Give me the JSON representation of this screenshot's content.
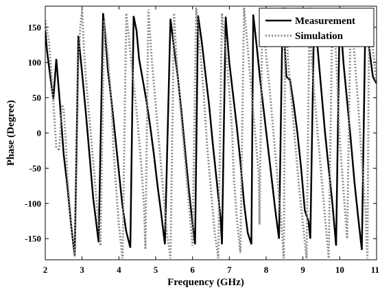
{
  "chart_data": {
    "type": "line",
    "xlabel": "Frequency (GHz)",
    "ylabel": "Phase (Degree)",
    "xlim": [
      2,
      11
    ],
    "ylim": [
      -180,
      180
    ],
    "xticks": [
      2,
      3,
      4,
      5,
      6,
      7,
      8,
      9,
      10,
      11
    ],
    "yticks": [
      150,
      100,
      50,
      0,
      -50,
      -100,
      -150
    ],
    "grid": false,
    "legend_position": "top-right",
    "series": [
      {
        "name": "Measurement",
        "color": "#000000",
        "style": "solid",
        "x": [
          2.0,
          2.05,
          2.15,
          2.22,
          2.3,
          2.4,
          2.5,
          2.6,
          2.7,
          2.8,
          2.9,
          3.0,
          3.1,
          3.2,
          3.3,
          3.45,
          3.57,
          3.62,
          3.7,
          3.8,
          3.9,
          4.0,
          4.1,
          4.2,
          4.31,
          4.4,
          4.48,
          4.55,
          4.65,
          4.75,
          4.85,
          4.95,
          5.05,
          5.15,
          5.25,
          5.4,
          5.5,
          5.6,
          5.7,
          5.8,
          5.9,
          6.0,
          6.07,
          6.15,
          6.25,
          6.35,
          6.45,
          6.55,
          6.65,
          6.76,
          6.8,
          6.9,
          7.0,
          7.1,
          7.2,
          7.3,
          7.4,
          7.5,
          7.6,
          7.65,
          7.75,
          7.85,
          7.95,
          8.05,
          8.15,
          8.25,
          8.35,
          8.45,
          8.55,
          8.65,
          8.75,
          8.85,
          8.95,
          9.05,
          9.15,
          9.2,
          9.3,
          9.4,
          9.5,
          9.6,
          9.7,
          9.8,
          9.9,
          10.0,
          10.1,
          10.2,
          10.3,
          10.4,
          10.5,
          10.6,
          10.7,
          10.8,
          10.9,
          11.0
        ],
        "y": [
          145,
          115,
          75,
          48,
          105,
          40,
          -30,
          -75,
          -130,
          -175,
          138,
          85,
          30,
          -30,
          -92,
          -155,
          170,
          145,
          90,
          45,
          -5,
          -55,
          -105,
          -140,
          -163,
          166,
          145,
          105,
          75,
          45,
          10,
          -30,
          -75,
          -115,
          -158,
          162,
          120,
          80,
          30,
          -25,
          -80,
          -128,
          -158,
          167,
          130,
          85,
          40,
          -15,
          -65,
          -120,
          -158,
          165,
          100,
          55,
          10,
          -40,
          -100,
          -142,
          -158,
          168,
          120,
          70,
          25,
          -20,
          -65,
          -110,
          -150,
          178,
          80,
          75,
          40,
          0,
          -50,
          -110,
          -125,
          -150,
          160,
          120,
          60,
          0,
          -50,
          -100,
          -160,
          175,
          100,
          45,
          -10,
          -70,
          -120,
          -166,
          172,
          120,
          80,
          70
        ]
      },
      {
        "name": "Simulation",
        "color": "#8a8a8a",
        "style": "dotted",
        "x": [
          2.0,
          2.1,
          2.2,
          2.3,
          2.38,
          2.45,
          2.5,
          2.55,
          2.6,
          2.7,
          2.8,
          2.9,
          2.95,
          3.0,
          3.05,
          3.1,
          3.2,
          3.3,
          3.4,
          3.5,
          3.6,
          3.7,
          3.8,
          3.85,
          3.9,
          4.0,
          4.1,
          4.2,
          4.3,
          4.4,
          4.5,
          4.6,
          4.68,
          4.72,
          4.8,
          4.9,
          5.0,
          5.1,
          5.2,
          5.3,
          5.4,
          5.5,
          5.55,
          5.6,
          5.7,
          5.8,
          5.9,
          6.0,
          6.1,
          6.2,
          6.3,
          6.35,
          6.4,
          6.5,
          6.6,
          6.7,
          6.8,
          6.9,
          7.0,
          7.08,
          7.12,
          7.2,
          7.3,
          7.4,
          7.5,
          7.6,
          7.7,
          7.8,
          7.82,
          7.9,
          8.0,
          8.1,
          8.2,
          8.3,
          8.4,
          8.48,
          8.52,
          8.6,
          8.7,
          8.8,
          8.9,
          9.0,
          9.1,
          9.18,
          9.22,
          9.3,
          9.4,
          9.5,
          9.6,
          9.7,
          9.8,
          9.9,
          9.95,
          10.0,
          10.1,
          10.2,
          10.3,
          10.4,
          10.5,
          10.6,
          10.7,
          10.75,
          10.8,
          10.9,
          11.0
        ],
        "y": [
          160,
          130,
          60,
          -20,
          -25,
          40,
          35,
          -5,
          -60,
          -130,
          -175,
          100,
          150,
          175,
          120,
          80,
          20,
          -40,
          -100,
          -160,
          160,
          110,
          40,
          -20,
          -60,
          -130,
          -178,
          170,
          120,
          70,
          20,
          -40,
          -100,
          -165,
          175,
          100,
          40,
          -20,
          -80,
          -140,
          -178,
          170,
          120,
          80,
          20,
          -40,
          -100,
          -160,
          178,
          120,
          60,
          20,
          -20,
          -80,
          -140,
          -178,
          170,
          120,
          60,
          0,
          -60,
          -120,
          -170,
          178,
          120,
          60,
          0,
          -60,
          -130,
          175,
          110,
          60,
          0,
          -60,
          -120,
          -178,
          178,
          100,
          40,
          -20,
          -80,
          -130,
          -178,
          178,
          120,
          60,
          0,
          -60,
          -120,
          -178,
          175,
          110,
          50,
          -10,
          -80,
          -150,
          178,
          110,
          40,
          -40,
          -110,
          -178,
          178,
          120,
          70
        ]
      }
    ]
  }
}
